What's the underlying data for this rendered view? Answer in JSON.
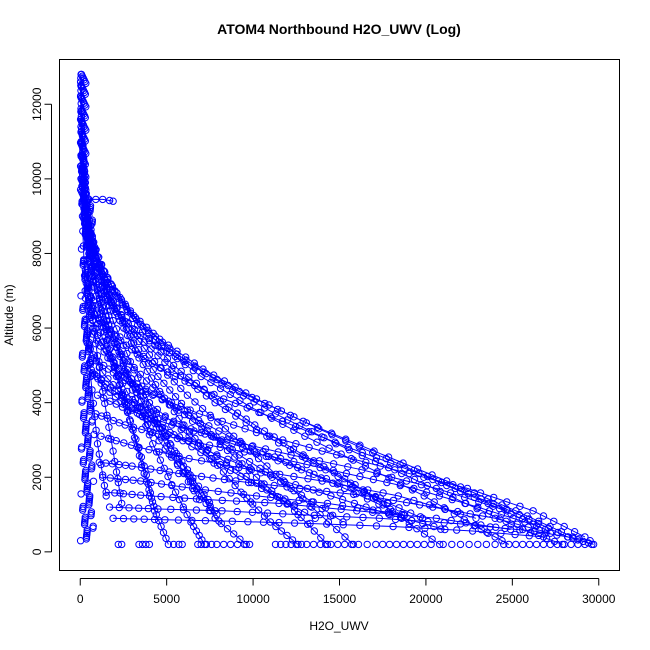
{
  "chart_data": {
    "type": "scatter",
    "title": "ATOM4 Northbound H2O_UWV (Log)",
    "xlabel": "H2O_UWV",
    "ylabel": "Altitude (m)",
    "xlim": [
      -1200,
      31200
    ],
    "ylim": [
      -500,
      13200
    ],
    "xticks": [
      0,
      5000,
      10000,
      15000,
      20000,
      25000,
      30000
    ],
    "yticks": [
      0,
      2000,
      4000,
      6000,
      8000,
      10000,
      12000
    ],
    "grid": false,
    "legend": "none",
    "color": "#0000ff",
    "marker": "open-circle",
    "connected": true,
    "series": [
      {
        "x": [
          50,
          120,
          300,
          600,
          1000,
          1600,
          2300,
          3000,
          3700,
          4400,
          5100
        ],
        "y": [
          12800,
          11200,
          9600,
          8200,
          7000,
          5700,
          4500,
          3300,
          2100,
          1000,
          200
        ]
      },
      {
        "x": [
          40,
          150,
          400,
          900,
          1500,
          2300,
          3200,
          4200,
          5300,
          6400,
          7200
        ],
        "y": [
          12500,
          10800,
          9300,
          7900,
          6600,
          5300,
          4100,
          2900,
          1800,
          800,
          200
        ]
      },
      {
        "x": [
          80,
          200,
          500,
          1100,
          1900,
          2900,
          4000,
          5200,
          6500,
          7800,
          9600
        ],
        "y": [
          11800,
          10300,
          8800,
          7500,
          6200,
          5100,
          4000,
          2900,
          1900,
          900,
          200
        ]
      },
      {
        "x": [
          100,
          300,
          700,
          1400,
          2300,
          3400,
          4600,
          6000,
          7600,
          9300,
          11000,
          12600
        ],
        "y": [
          11000,
          9600,
          8400,
          7200,
          6200,
          5200,
          4300,
          3400,
          2500,
          1600,
          800,
          200
        ]
      },
      {
        "x": [
          60,
          250,
          600,
          1200,
          2000,
          3100,
          4500,
          6200,
          8100,
          10200,
          12400,
          14300
        ],
        "y": [
          10600,
          9400,
          8400,
          7400,
          6500,
          5600,
          4700,
          3800,
          2900,
          2000,
          1100,
          200
        ]
      },
      {
        "x": [
          120,
          400,
          900,
          1700,
          2800,
          4300,
          6200,
          8400,
          10800,
          13400,
          15800
        ],
        "y": [
          10200,
          9000,
          7900,
          6900,
          6000,
          5100,
          4200,
          3300,
          2300,
          1200,
          200
        ]
      },
      {
        "x": [
          150,
          500,
          1200,
          2200,
          3600,
          5400,
          7600,
          10100,
          12900,
          15900,
          18600,
          20800
        ],
        "y": [
          9800,
          8700,
          7700,
          6800,
          5900,
          5000,
          4200,
          3400,
          2600,
          1800,
          900,
          200
        ]
      },
      {
        "x": [
          200,
          700,
          1600,
          2900,
          4700,
          7000,
          9800,
          13000,
          16500,
          19900,
          22800,
          24800
        ],
        "y": [
          9400,
          8300,
          7300,
          6400,
          5500,
          4700,
          3900,
          3100,
          2300,
          1500,
          700,
          200
        ]
      },
      {
        "x": [
          300,
          900,
          2000,
          3500,
          5600,
          8200,
          11300,
          14800,
          18600,
          22300,
          25600,
          27900
        ],
        "y": [
          8900,
          7900,
          7000,
          6100,
          5300,
          4500,
          3700,
          2900,
          2100,
          1300,
          600,
          200
        ]
      },
      {
        "x": [
          400,
          1300,
          2700,
          4600,
          7100,
          10200,
          13800,
          17700,
          21700,
          25400,
          28200,
          29700
        ],
        "y": [
          8400,
          7400,
          6500,
          5700,
          4900,
          4100,
          3300,
          2500,
          1700,
          1000,
          400,
          200
        ]
      },
      {
        "x": [
          500,
          1700,
          3500,
          6000,
          9200,
          12900,
          17000,
          21200,
          25200,
          28500
        ],
        "y": [
          7400,
          6600,
          5800,
          5100,
          4300,
          3500,
          2700,
          1900,
          1100,
          400
        ]
      },
      {
        "x": [
          250,
          800,
          1800,
          3300,
          5300,
          7800,
          10800,
          14200,
          17800
        ],
        "y": [
          8800,
          7700,
          6700,
          5800,
          4900,
          4000,
          3100,
          2200,
          1300
        ]
      },
      {
        "x": [
          60,
          180,
          400,
          800,
          1400,
          2100,
          2900,
          3700,
          4300
        ],
        "y": [
          11600,
          10000,
          8500,
          7100,
          5900,
          4700,
          3500,
          2300,
          1100
        ]
      },
      {
        "x": [
          30,
          90,
          220,
          450,
          800,
          1300,
          1900,
          2400
        ],
        "y": [
          12700,
          11000,
          9200,
          7500,
          5900,
          4300,
          2700,
          1300
        ]
      },
      {
        "x": [
          20,
          60,
          150,
          320,
          600,
          1000,
          1500
        ],
        "y": [
          12600,
          10600,
          8600,
          6600,
          4700,
          2900,
          1500
        ]
      },
      {
        "x": [
          600,
          1700,
          3300,
          5500,
          8300,
          11700,
          15500,
          19600,
          23600,
          26900
        ],
        "y": [
          6500,
          5900,
          5300,
          4700,
          4100,
          3500,
          2800,
          2100,
          1300,
          600
        ]
      },
      {
        "x": [
          800,
          2200,
          4200,
          6900,
          10200,
          14000,
          18200,
          22400,
          26200,
          29200
        ],
        "y": [
          5200,
          4700,
          4200,
          3700,
          3200,
          2700,
          2200,
          1700,
          1100,
          400
        ]
      },
      {
        "x": [
          1000,
          2800,
          5300,
          8500,
          12200,
          16300,
          20600,
          24700
        ],
        "y": [
          4200,
          3800,
          3400,
          3000,
          2600,
          2200,
          1700,
          1100
        ]
      },
      {
        "x": [
          1200,
          3400,
          6300,
          9900,
          14000,
          18400,
          22900
        ],
        "y": [
          3100,
          2800,
          2500,
          2200,
          1900,
          1500,
          900
        ]
      },
      {
        "x": [
          300,
          1000,
          2200,
          4000,
          6300,
          9000,
          12000
        ],
        "y": [
          6800,
          5800,
          4900,
          4000,
          3100,
          2200,
          1300
        ]
      },
      {
        "x": [
          400,
          1300,
          2800,
          4900,
          7500,
          10500,
          13600
        ],
        "y": [
          5600,
          4800,
          4000,
          3300,
          2500,
          1700,
          900
        ]
      },
      {
        "x": [
          200,
          700,
          1500,
          2700,
          4200,
          6000,
          7900
        ],
        "y": [
          7800,
          6600,
          5400,
          4300,
          3200,
          2100,
          1000
        ]
      },
      {
        "x": [
          700,
          2000,
          3900,
          6400,
          9400,
          12800,
          16400,
          19800
        ],
        "y": [
          4800,
          4300,
          3800,
          3300,
          2800,
          2200,
          1600,
          900
        ]
      },
      {
        "x": [
          900,
          2600,
          5000,
          8100,
          11600,
          15400,
          19300,
          23000,
          26400
        ],
        "y": [
          3700,
          3400,
          3100,
          2800,
          2500,
          2100,
          1700,
          1200,
          700
        ]
      },
      {
        "x": [
          1100,
          3000,
          5700,
          9000,
          12700,
          16600,
          20400,
          24000,
          27200
        ],
        "y": [
          2400,
          2300,
          2100,
          1900,
          1700,
          1500,
          1200,
          900,
          500
        ]
      },
      {
        "x": [
          500,
          1600,
          3300,
          5700,
          8600,
          11900,
          15300,
          18600
        ],
        "y": [
          6000,
          5200,
          4500,
          3800,
          3100,
          2400,
          1700,
          1000
        ]
      },
      {
        "x": [
          150,
          500,
          1100,
          2000,
          3200,
          4600,
          6200,
          7800
        ],
        "y": [
          9300,
          8000,
          6800,
          5600,
          4400,
          3300,
          2200,
          1100
        ]
      },
      {
        "x": [
          350,
          1100,
          2400,
          4200,
          6500,
          9200,
          12200,
          15200
        ],
        "y": [
          7200,
          6200,
          5300,
          4400,
          3500,
          2600,
          1700,
          800
        ]
      },
      {
        "x": [
          1300,
          3500,
          6500,
          10200,
          14300,
          18700
        ],
        "y": [
          2000,
          1900,
          1700,
          1500,
          1300,
          1000
        ]
      },
      {
        "x": [
          1500,
          4000,
          7400,
          11500,
          16000,
          20600,
          24900
        ],
        "y": [
          1600,
          1500,
          1400,
          1300,
          1100,
          900,
          600
        ]
      },
      {
        "x": [
          1700,
          4500,
          8200,
          12600,
          17300,
          22000,
          26300,
          29500
        ],
        "y": [
          1200,
          1150,
          1100,
          1000,
          900,
          750,
          550,
          300
        ]
      },
      {
        "x": [
          1900,
          4900,
          8800,
          13300,
          18100,
          22700,
          26800
        ],
        "y": [
          900,
          860,
          820,
          760,
          680,
          560,
          400
        ]
      },
      {
        "x": [
          100,
          350,
          800,
          1500,
          2500,
          3800,
          5300,
          6900
        ],
        "y": [
          10000,
          8700,
          7400,
          6200,
          5000,
          3800,
          2600,
          1400
        ]
      },
      {
        "x": [
          450,
          1400,
          3000,
          5200,
          7900,
          11100,
          14500,
          17900,
          21100
        ],
        "y": [
          5000,
          4400,
          3800,
          3200,
          2600,
          2000,
          1500,
          1000,
          600
        ]
      }
    ],
    "ground_points_x": [
      2200,
      2400,
      3400,
      3600,
      3800,
      4000,
      5400,
      5700,
      5900,
      6800,
      7000,
      7300,
      7600,
      7900,
      8300,
      8700,
      9100,
      9500,
      9800,
      11300,
      11600,
      11900,
      12200,
      12500,
      12800,
      13100,
      13500,
      13900,
      14200,
      14500,
      14900,
      15300,
      15700,
      16100,
      16600,
      17100,
      17500,
      17900,
      18300,
      18700,
      19100,
      19500,
      19900,
      20300,
      21000,
      21500,
      22000,
      22500,
      23000,
      23500,
      24000,
      24500,
      25200,
      25600,
      26000,
      26400,
      26800,
      27200,
      27600,
      28000,
      28400,
      28800,
      29200,
      29600
    ],
    "upper_segment": {
      "x": [
        200,
        500,
        900,
        1300,
        1700,
        1900
      ],
      "y": [
        9450,
        9450,
        9450,
        9450,
        9420,
        9400
      ]
    }
  }
}
